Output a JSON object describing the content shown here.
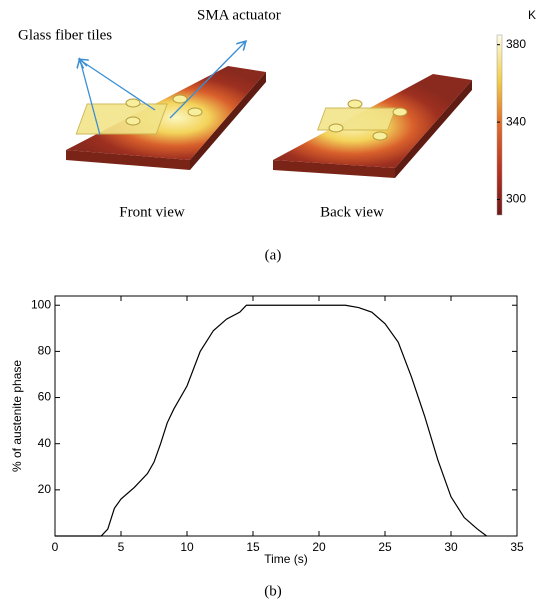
{
  "figure_a": {
    "labels": [
      "Glass fiber tiles",
      "SMA actuator",
      "Front view",
      "Back view"
    ],
    "caption": "(a)",
    "colorbar": {
      "label": "K",
      "lim": [
        292,
        385
      ],
      "ticks": [
        300,
        340,
        380
      ]
    }
  },
  "chart_data": {
    "type": "line",
    "caption": "(b)",
    "x_label": "Time (s)",
    "y_label": "% of austenite phase",
    "xlim": [
      0,
      35
    ],
    "ylim": [
      0,
      104
    ],
    "xticks": [
      0,
      5,
      10,
      15,
      20,
      25,
      30,
      35
    ],
    "yticks": [
      20,
      40,
      60,
      80,
      100
    ],
    "series": [
      {
        "color": "#000000",
        "x": [
          0,
          3.5,
          4,
          4.5,
          5,
          6,
          7,
          7.5,
          8,
          8.5,
          9,
          10,
          11,
          12,
          13,
          14,
          14.5,
          15,
          20,
          22,
          23,
          24,
          25,
          26,
          27,
          28,
          29,
          30,
          31,
          32,
          32.7
        ],
        "values": [
          0,
          0,
          3,
          12,
          16,
          21,
          27,
          32,
          40,
          49,
          55,
          65,
          80,
          89,
          94,
          97,
          100,
          100,
          100,
          100,
          99,
          97,
          92,
          84,
          69,
          52,
          33,
          17,
          8,
          3,
          0
        ]
      }
    ]
  }
}
